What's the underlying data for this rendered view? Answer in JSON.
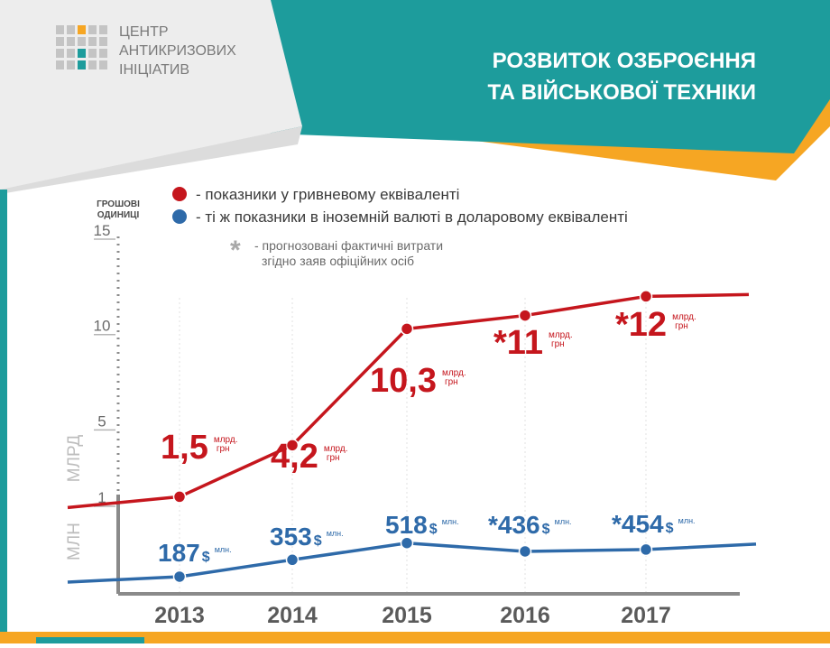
{
  "header": {
    "org_line1": "ЦЕНТР",
    "org_line2": "АНТИКРИЗОВИХ",
    "org_line3": "ІНІЦІАТИВ",
    "title_line1": "РОЗВИТОК ОЗБРОЄННЯ",
    "title_line2": "ТА ВІЙСЬКОВОЇ ТЕХНІКИ"
  },
  "legend": {
    "red": "- показники у гривневому еквіваленті",
    "blue": "- ті ж показники в іноземній валюті в доларовому еквіваленті",
    "asterisk": "*",
    "forecast_line1": "- прогнозовані фактичні витрати",
    "forecast_line2": "згідно заяв офіційних осіб"
  },
  "axis": {
    "units_line1": "ГРОШОВІ",
    "units_line2": "ОДИНИЦІ",
    "mlrd_label": "МЛРД",
    "mln_label": "МЛН"
  },
  "colors": {
    "red": "#c5161d",
    "blue": "#2e6aa9",
    "teal": "#1d9c9c",
    "orange": "#f6a623",
    "axis": "#8c8c8c",
    "grid": "#e1e1e1",
    "year": "#5a5a5a"
  },
  "chart_data": {
    "type": "line",
    "categories": [
      "2013",
      "2014",
      "2015",
      "2016",
      "2017"
    ],
    "yticks": [
      "15",
      "10",
      "5",
      "1"
    ],
    "ylim": [
      0,
      15
    ],
    "series": [
      {
        "name": "показники у гривневому еквіваленті",
        "values": [
          1.5,
          4.2,
          10.3,
          11,
          12
        ],
        "labels": [
          "1,5",
          "4,2",
          "10,3",
          "*11",
          "*12"
        ],
        "unit_line1": "млрд.",
        "unit_line2": "грн"
      },
      {
        "name": "ті ж показники в іноземній валюті в доларовому еквіваленті",
        "values": [
          187,
          353,
          518,
          436,
          454
        ],
        "labels": [
          "187",
          "353",
          "518",
          "*436",
          "*454"
        ],
        "currency": "$",
        "unit": "млн."
      }
    ]
  }
}
